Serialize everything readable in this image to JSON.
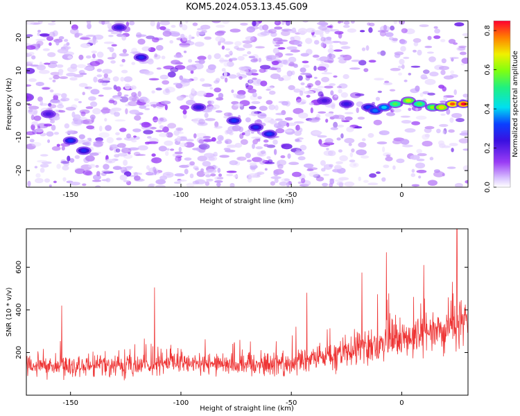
{
  "title": "KOM5.2024.053.13.45.G09",
  "chart_data": [
    {
      "type": "heatmap",
      "name": "spectrogram",
      "xlabel": "Height of straight line (km)",
      "ylabel": "Frequency (Hz)",
      "xlim": [
        -170,
        30
      ],
      "ylim": [
        -25,
        25
      ],
      "xticks": [
        -150,
        -100,
        -50,
        0
      ],
      "yticks": [
        -20,
        -10,
        0,
        10,
        20
      ],
      "colorbar": {
        "label": "Normalized spectral amplitude",
        "range": [
          0.0,
          0.85
        ],
        "ticks": [
          0.0,
          0.2,
          0.4,
          0.6,
          0.8
        ],
        "colormap": "rainbow (violet-blue-cyan-green-yellow-red), low values white"
      },
      "ridge": [
        {
          "x": -170,
          "y": 2,
          "amp": 0.15
        },
        {
          "x": -160,
          "y": -3,
          "amp": 0.22
        },
        {
          "x": -150,
          "y": -11,
          "amp": 0.3
        },
        {
          "x": -144,
          "y": -14,
          "amp": 0.28
        },
        {
          "x": -128,
          "y": 23,
          "amp": 0.25
        },
        {
          "x": -118,
          "y": 14,
          "amp": 0.28
        },
        {
          "x": -92,
          "y": -1,
          "amp": 0.25
        },
        {
          "x": -76,
          "y": -5,
          "amp": 0.3
        },
        {
          "x": -66,
          "y": -7,
          "amp": 0.28
        },
        {
          "x": -60,
          "y": -9,
          "amp": 0.3
        },
        {
          "x": -35,
          "y": 1,
          "amp": 0.22
        },
        {
          "x": -25,
          "y": 0,
          "amp": 0.25
        },
        {
          "x": -15,
          "y": -1,
          "amp": 0.3
        },
        {
          "x": -12,
          "y": -2,
          "amp": 0.35
        },
        {
          "x": -8,
          "y": -1,
          "amp": 0.4
        },
        {
          "x": -3,
          "y": 0,
          "amp": 0.55
        },
        {
          "x": 3,
          "y": 1,
          "amp": 0.65
        },
        {
          "x": 8,
          "y": 0,
          "amp": 0.55
        },
        {
          "x": 14,
          "y": -1,
          "amp": 0.6
        },
        {
          "x": 18,
          "y": -1,
          "amp": 0.7
        },
        {
          "x": 23,
          "y": 0,
          "amp": 0.8
        },
        {
          "x": 28,
          "y": 0,
          "amp": 0.85
        }
      ]
    },
    {
      "type": "line",
      "name": "snr",
      "xlabel": "Height of straight line (km)",
      "ylabel": "SNR (10 * v/v)",
      "xlim": [
        -170,
        30
      ],
      "ylim": [
        0,
        780
      ],
      "xticks": [
        -150,
        -100,
        -50,
        0
      ],
      "yticks": [
        200,
        400,
        600
      ],
      "color": "#ee3333",
      "trend": {
        "x": [
          -170,
          -100,
          -50,
          -30,
          0,
          30
        ],
        "y": [
          135,
          145,
          150,
          190,
          260,
          340
        ]
      },
      "spread": {
        "x": [
          -170,
          -50,
          -30,
          0,
          30
        ],
        "y": [
          55,
          65,
          80,
          100,
          120
        ]
      },
      "peaks": [
        {
          "x": -154,
          "y": 420
        },
        {
          "x": -112,
          "y": 505
        },
        {
          "x": -43,
          "y": 480
        },
        {
          "x": -18,
          "y": 575
        },
        {
          "x": -7,
          "y": 670
        },
        {
          "x": 10,
          "y": 610
        },
        {
          "x": 25,
          "y": 780
        }
      ]
    }
  ]
}
